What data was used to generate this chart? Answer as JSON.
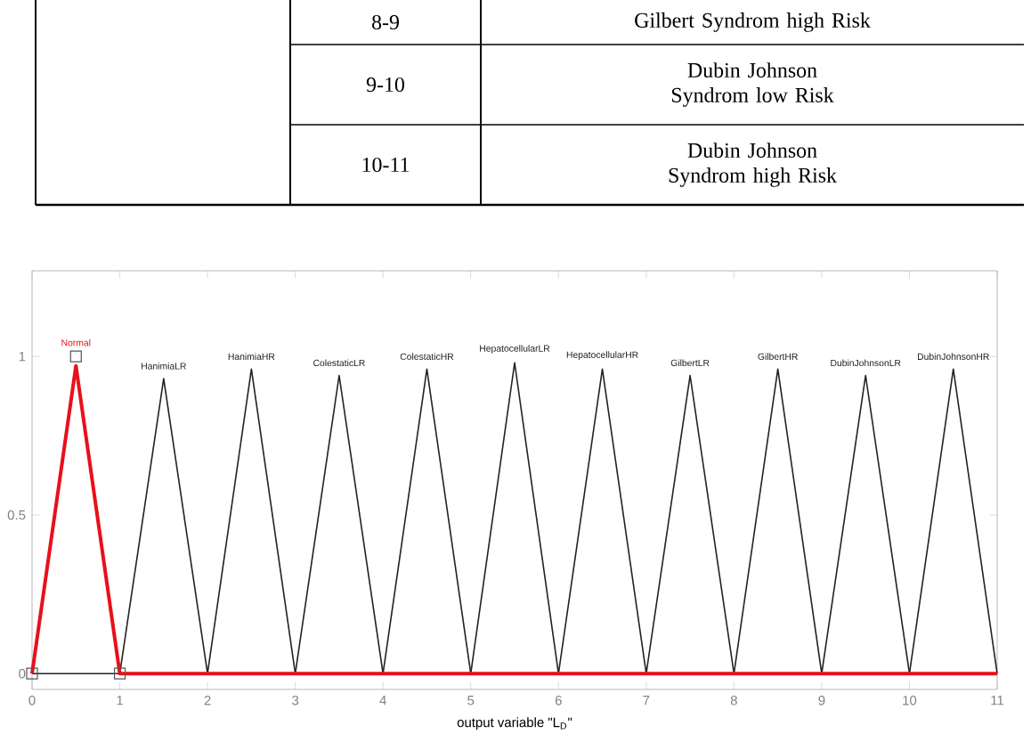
{
  "chart_data": {
    "type": "line",
    "xlabel": "output variable \"L$_{D}$\"",
    "xlim": [
      0,
      11
    ],
    "ylim": [
      -0.05,
      1.27
    ],
    "xticks": [
      0,
      1,
      2,
      3,
      4,
      5,
      6,
      7,
      8,
      9,
      10,
      11
    ],
    "yticks": [
      0,
      0.5,
      1
    ],
    "grid": false,
    "marker": "none",
    "line_style": "solid",
    "annotations": [
      "8-9",
      "Gilbert Syndrom high Risk",
      "9-10",
      "Dubin Johnson Syndrom low Risk",
      "10-11",
      "Dubin Johnson Syndrom high Risk"
    ],
    "series": [
      {
        "name": "HanimiaLR",
        "color": "#222222",
        "x": [
          0,
          1,
          1.5,
          2
        ],
        "values": [
          0,
          0,
          0.93,
          0
        ]
      },
      {
        "name": "HanimiaHR",
        "color": "#222222",
        "x": [
          2,
          2.5,
          3
        ],
        "values": [
          0,
          0.96,
          0
        ]
      },
      {
        "name": "ColestaticLR",
        "color": "#222222",
        "x": [
          3,
          3.5,
          4
        ],
        "values": [
          0,
          0.94,
          0
        ]
      },
      {
        "name": "ColestaticHR",
        "color": "#222222",
        "x": [
          4,
          4.5,
          5
        ],
        "values": [
          0,
          0.96,
          0
        ]
      },
      {
        "name": "HepatocellularLR",
        "color": "#222222",
        "x": [
          5,
          5.5,
          6
        ],
        "values": [
          0,
          0.98,
          0
        ]
      },
      {
        "name": "HepatocellularHR",
        "color": "#222222",
        "x": [
          6,
          6.5,
          7
        ],
        "values": [
          0,
          0.96,
          0
        ]
      },
      {
        "name": "GilbertLR",
        "color": "#222222",
        "x": [
          7,
          7.5,
          8
        ],
        "values": [
          0,
          0.94,
          0
        ]
      },
      {
        "name": "GilbertHR",
        "color": "#222222",
        "x": [
          8,
          8.5,
          9
        ],
        "values": [
          0,
          0.96,
          0
        ]
      },
      {
        "name": "DubinJohnsonLR",
        "color": "#222222",
        "x": [
          9,
          9.5,
          10
        ],
        "values": [
          0,
          0.94,
          0
        ]
      },
      {
        "name": "DubinJohnsonHR",
        "color": "#222222",
        "x": [
          10,
          10.5,
          11
        ],
        "values": [
          0,
          0.96,
          0
        ]
      },
      {
        "name": "Normal",
        "color": "#e8101a",
        "x": [
          0,
          0.5,
          1,
          11
        ],
        "values": [
          0,
          0.97,
          0,
          0
        ]
      },
      {
        "type": "scatter",
        "marker": "square",
        "color": "#555555",
        "x": [
          0,
          0.5,
          1
        ],
        "values": [
          0,
          1,
          0
        ]
      }
    ]
  }
}
